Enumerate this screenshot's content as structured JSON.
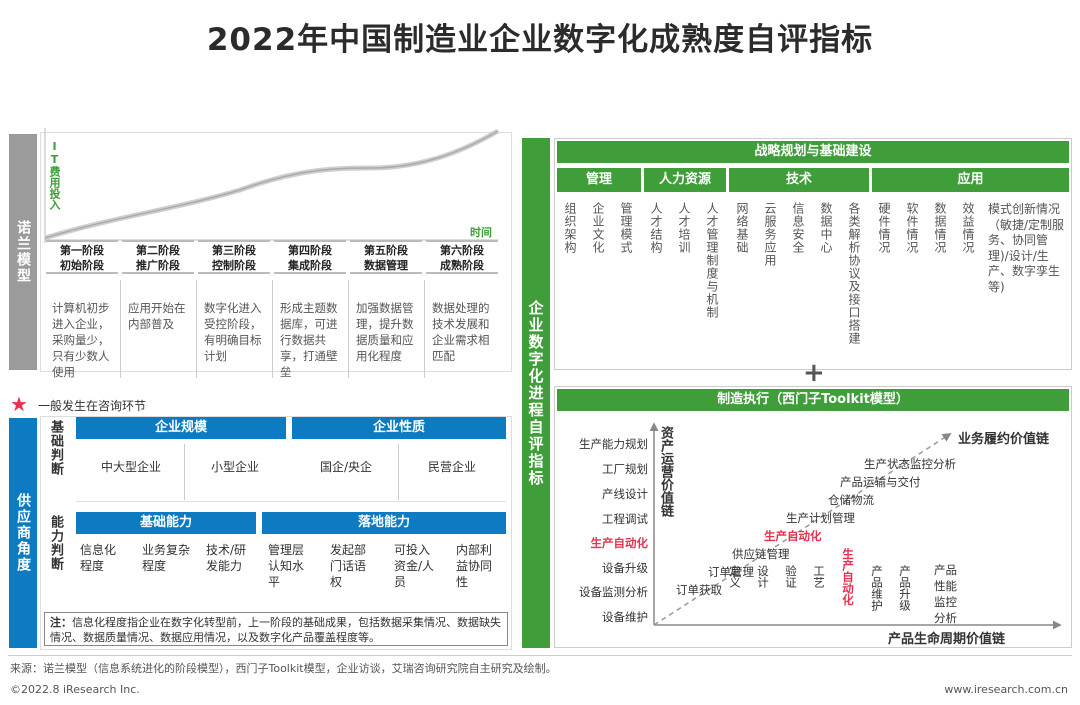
{
  "title": "2022年中国制造业企业数字化成熟度自评指标",
  "nolan": {
    "bar_label": "诺兰模型",
    "y_axis": "IT费用投入",
    "x_axis": "时间",
    "stages": [
      {
        "name": "第一阶段\n初始阶段",
        "desc": "计算机初步进入企业，采购量少，只有少数人使用"
      },
      {
        "name": "第二阶段\n推广阶段",
        "desc": "应用开始在内部普及"
      },
      {
        "name": "第三阶段\n控制阶段",
        "desc": "数字化进入受控阶段，有明确目标计划"
      },
      {
        "name": "第四阶段\n集成阶段",
        "desc": "形成主题数据库，可进行数据共享，打通壁垒"
      },
      {
        "name": "第五阶段\n数据管理",
        "desc": "加强数据管理，提升数据质量和应用化程度"
      },
      {
        "name": "第六阶段\n成熟阶段",
        "desc": "数据处理的技术发展和企业需求相匹配"
      }
    ]
  },
  "legend_consulting": "一般发生在咨询环节",
  "supplier": {
    "bar_label": "供应商角度",
    "basic_label": "基础判断",
    "ability_label": "能力判断",
    "scale": {
      "header": "企业规模",
      "items": [
        "中大型企业",
        "小型企业"
      ]
    },
    "nature": {
      "header": "企业性质",
      "items": [
        "国企/央企",
        "民营企业"
      ]
    },
    "basic_ability": {
      "header": "基础能力",
      "items": [
        "信息化程度",
        "业务复杂程度",
        "技术/研发能力"
      ]
    },
    "landing_ability": {
      "header": "落地能力",
      "items": [
        "管理层认知水平",
        "发起部门话语权",
        "可投入资金/人员",
        "内部利益协同性"
      ]
    },
    "note_prefix": "注：",
    "note": "信息化程度指企业在数字化转型前，上一阶段的基础成果，包括数据采集情况、数据缺失情况、数据质量情况、数据应用情况，以及数字化产品覆盖程度等。"
  },
  "self_eval": {
    "bar_label": "企业数字化进程自评指标",
    "strategy_header": "战略规划与基础建设",
    "categories": [
      {
        "name": "管理",
        "items": [
          "组织架构",
          "企业文化",
          "管理模式"
        ]
      },
      {
        "name": "人力资源",
        "items": [
          "人才结构",
          "人才培训",
          "人才管理制度与机制"
        ]
      },
      {
        "name": "技术",
        "items": [
          "网络基础",
          "云服务应用",
          "信息安全",
          "数据中心",
          "各类解析协议及接口搭建"
        ]
      },
      {
        "name": "应用",
        "items": [
          "硬件情况",
          "软件情况",
          "数据情况",
          "效益情况",
          "模式创新情况（敏捷/定制服务、协同管理)/设计/生产、数字孪生等)"
        ]
      }
    ],
    "plus": "+",
    "exec_header": "制造执行（西门子Toolkit模型）",
    "y_axis": "资产运营价值链",
    "x_axis": "产品生命周期价值链",
    "diag_label": "业务履约价值链",
    "y_items": [
      "生产能力规划",
      "工厂规划",
      "产线设计",
      "工程调试",
      "生产自动化",
      "设备升级",
      "设备监测分析",
      "设备维护"
    ],
    "x_items": [
      "定义",
      "设计",
      "验证",
      "工艺",
      "生产自动化",
      "产品维护",
      "产品升级",
      "产品性能监控分析"
    ],
    "diag_items": [
      "订单获取",
      "订单管理",
      "供应链管理",
      "生产自动化",
      "生产计划管理",
      "仓储物流",
      "产品运输与交付",
      "生产状态监控分析"
    ],
    "highlight_color": "#e8314f"
  },
  "source": "来源：诺兰模型（信息系统进化的阶段模型），西门子Toolkit模型，企业访谈，艾瑞咨询研究院自主研究及绘制。",
  "copyright": "©2022.8 iResearch Inc.",
  "website": "www.iresearch.com.cn"
}
